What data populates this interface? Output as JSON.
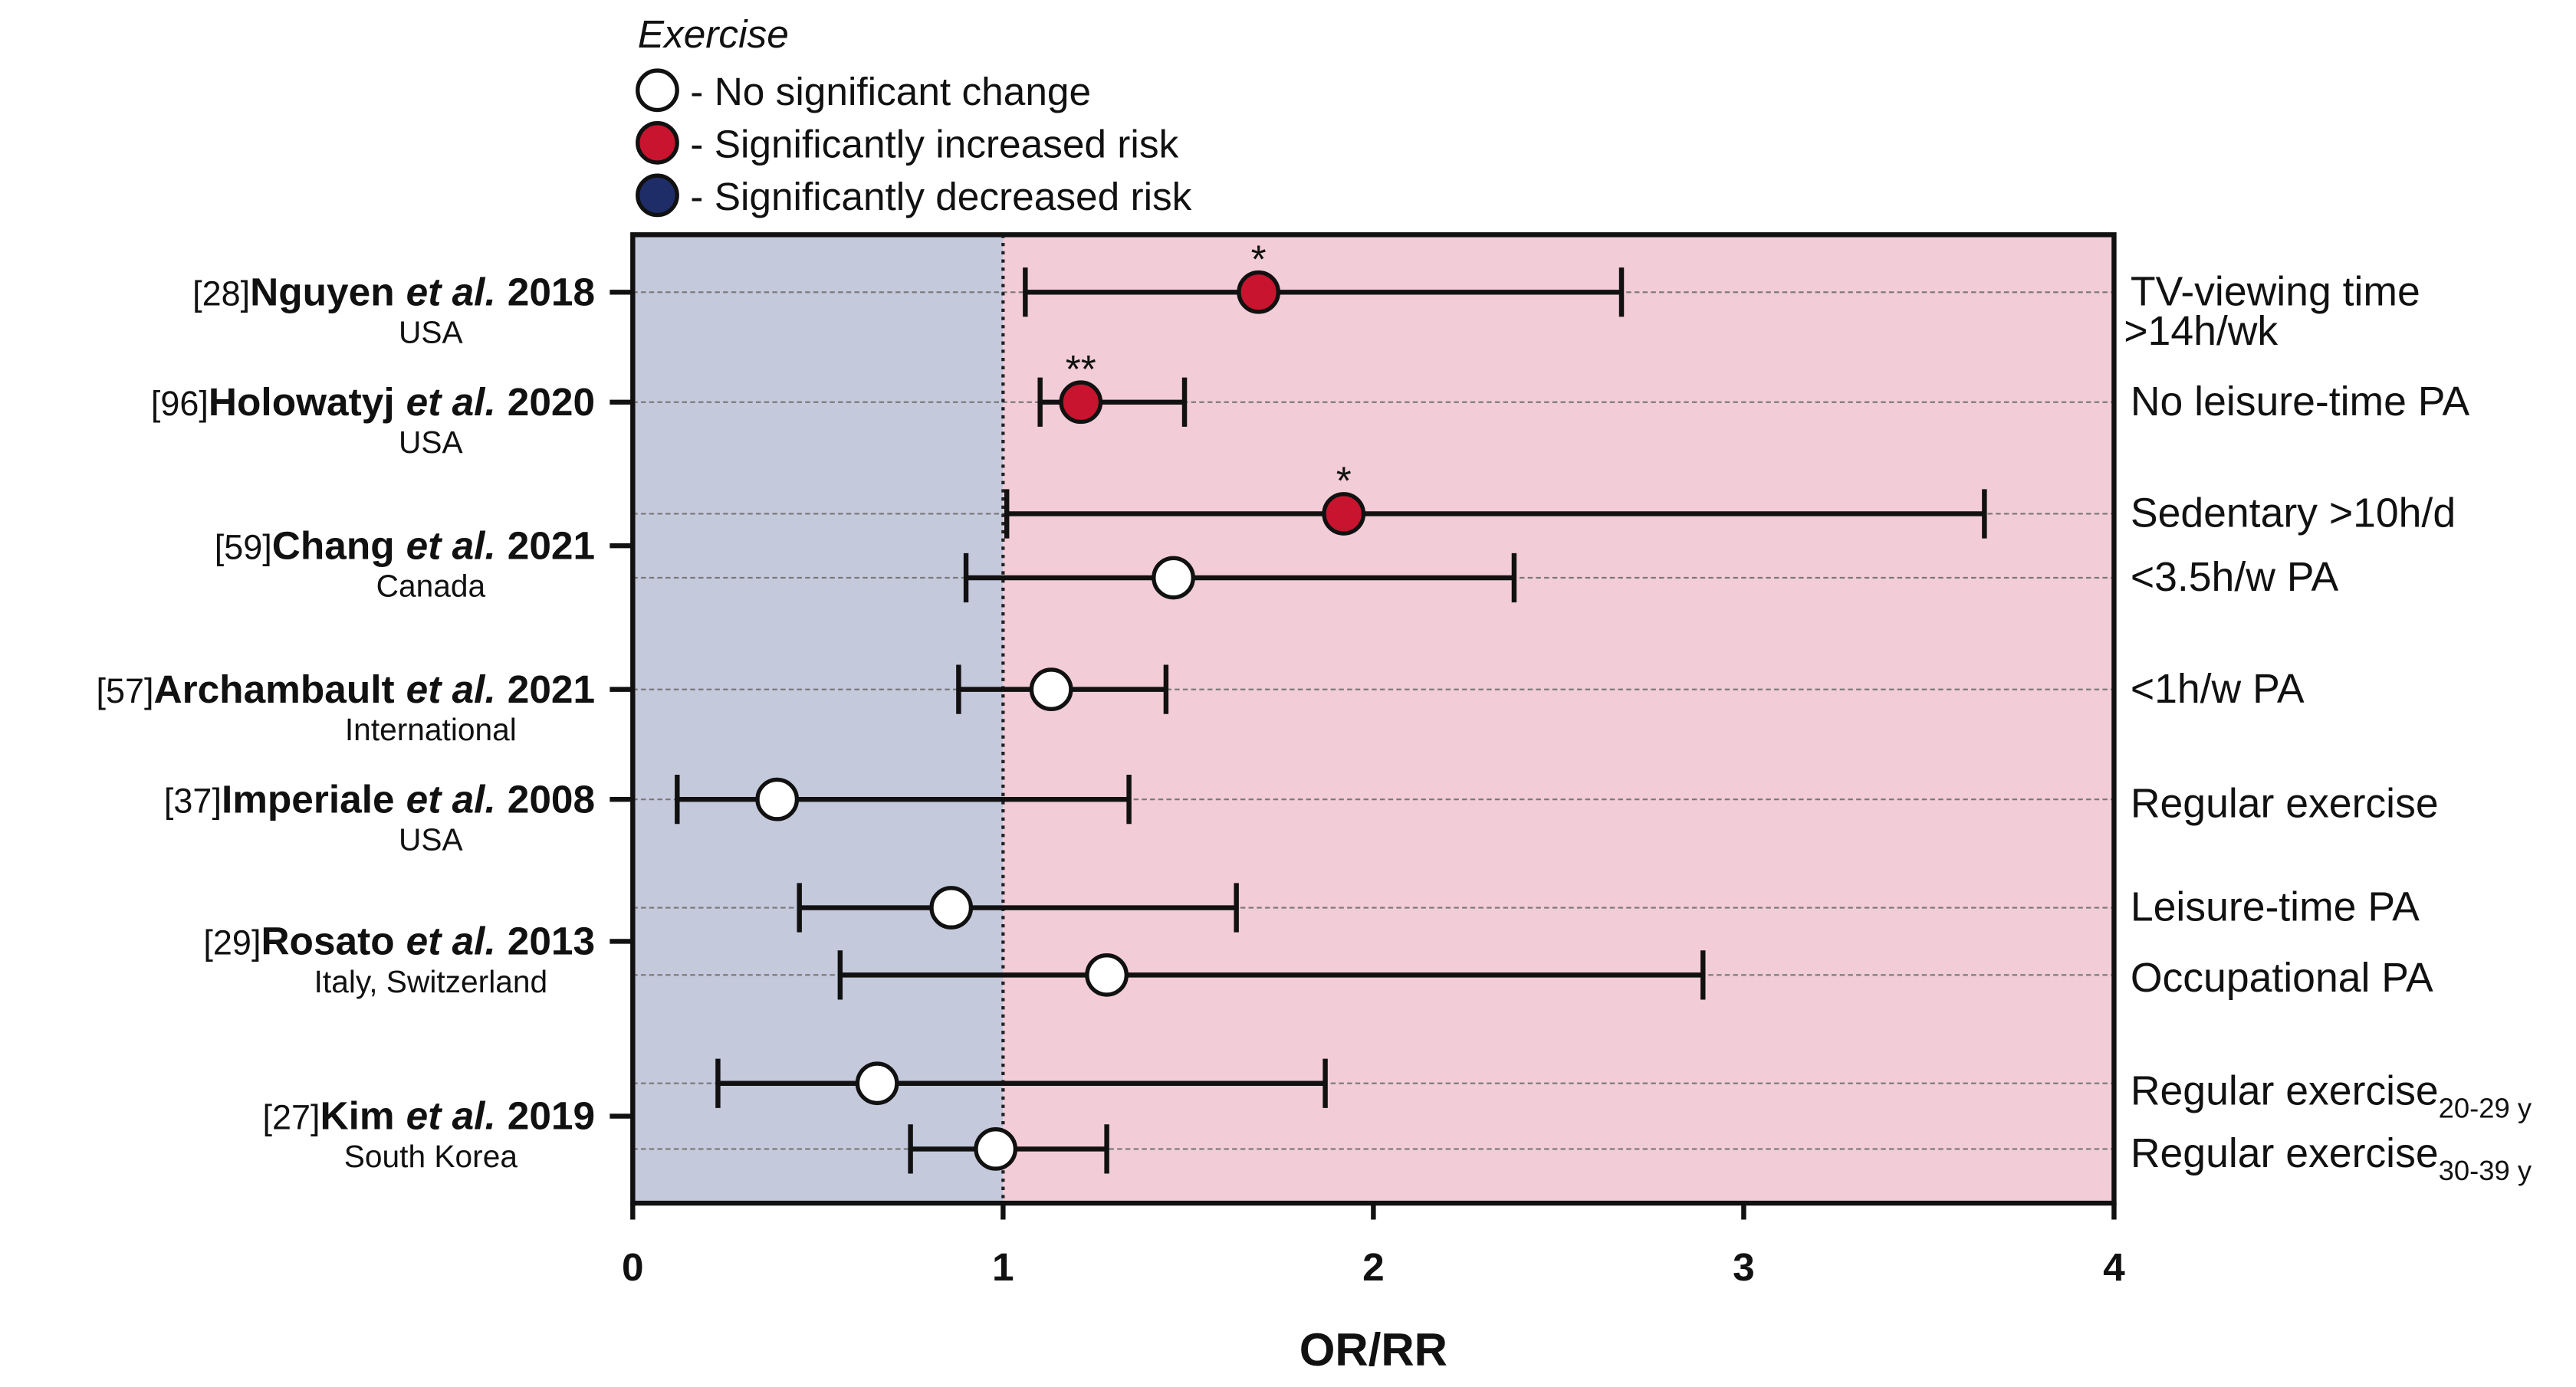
{
  "chart_data": {
    "type": "forest",
    "xlabel": "OR/RR",
    "xlim": [
      0,
      4
    ],
    "xticks": [
      0,
      1,
      2,
      3,
      4
    ],
    "reference_line": 1,
    "left_shade_color": "#c4c9dc",
    "right_shade_color": "#f2ccd6",
    "row_lines": true,
    "legend": {
      "title": "Exercise",
      "entries": [
        {
          "label": "- No significant change",
          "color": "#ffffff"
        },
        {
          "label": "- Significantly increased risk",
          "color": "#c8142e"
        },
        {
          "label": "- Significantly decreased risk",
          "color": "#1e2d68"
        }
      ]
    },
    "studies": [
      {
        "ref": "[28]",
        "name": "Nguyen",
        "etal": "et al.",
        "year": "2018",
        "country": "USA",
        "rows": [
          {
            "label": "TV-viewing time",
            "label2": ">14h/wk",
            "estimate": 1.69,
            "low": 1.06,
            "high": 2.67,
            "color": "#c8142e",
            "annotation": "*"
          }
        ]
      },
      {
        "ref": "[96]",
        "name": "Holowatyj",
        "etal": "et al.",
        "year": "2020",
        "country": "USA",
        "rows": [
          {
            "label": "No leisure-time PA",
            "estimate": 1.21,
            "low": 1.1,
            "high": 1.49,
            "color": "#c8142e",
            "annotation": "**"
          }
        ]
      },
      {
        "ref": "[59]",
        "name": "Chang",
        "etal": "et al.",
        "year": "2021",
        "country": "Canada",
        "rows": [
          {
            "label": "Sedentary >10h/d",
            "estimate": 1.92,
            "low": 1.01,
            "high": 3.65,
            "color": "#c8142e",
            "annotation": "*"
          },
          {
            "label": "<3.5h/w PA",
            "estimate": 1.46,
            "low": 0.9,
            "high": 2.38,
            "color": "#ffffff"
          }
        ]
      },
      {
        "ref": "[57]",
        "name": "Archambault",
        "etal": "et al.",
        "year": "2021",
        "country": "International",
        "rows": [
          {
            "label": "<1h/w PA",
            "estimate": 1.13,
            "low": 0.88,
            "high": 1.44,
            "color": "#ffffff"
          }
        ]
      },
      {
        "ref": "[37]",
        "name": "Imperiale",
        "etal": "et al.",
        "year": "2008",
        "country": "USA",
        "rows": [
          {
            "label": "Regular exercise",
            "estimate": 0.39,
            "low": 0.12,
            "high": 1.34,
            "color": "#ffffff"
          }
        ]
      },
      {
        "ref": "[29]",
        "name": "Rosato",
        "etal": "et al.",
        "year": "2013",
        "country": "Italy, Switzerland",
        "rows": [
          {
            "label": "Leisure-time PA",
            "estimate": 0.86,
            "low": 0.45,
            "high": 1.63,
            "color": "#ffffff"
          },
          {
            "label": "Occupational PA",
            "estimate": 1.28,
            "low": 0.56,
            "high": 2.89,
            "color": "#ffffff"
          }
        ]
      },
      {
        "ref": "[27]",
        "name": "Kim",
        "etal": "et al.",
        "year": "2019",
        "country": "South Korea",
        "rows": [
          {
            "label": "Regular exercise",
            "subscript": "20-29 y",
            "estimate": 0.66,
            "low": 0.23,
            "high": 1.87,
            "color": "#ffffff"
          },
          {
            "label": "Regular exercise",
            "subscript": "30-39 y",
            "estimate": 0.98,
            "low": 0.75,
            "high": 1.28,
            "color": "#ffffff"
          }
        ]
      }
    ]
  }
}
